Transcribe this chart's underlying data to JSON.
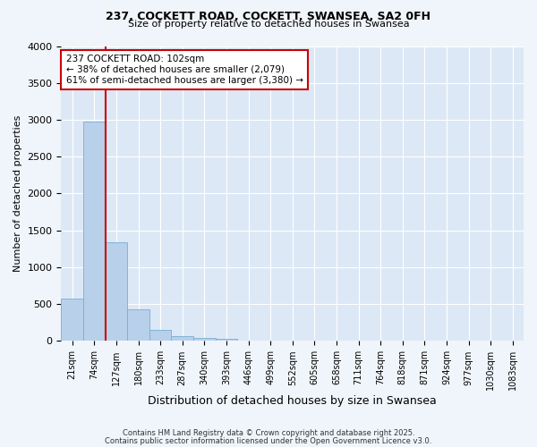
{
  "title_line1": "237, COCKETT ROAD, COCKETT, SWANSEA, SA2 0FH",
  "title_line2": "Size of property relative to detached houses in Swansea",
  "xlabel": "Distribution of detached houses by size in Swansea",
  "ylabel": "Number of detached properties",
  "footnote_line1": "Contains HM Land Registry data © Crown copyright and database right 2025.",
  "footnote_line2": "Contains public sector information licensed under the Open Government Licence v3.0.",
  "bar_labels": [
    "21sqm",
    "74sqm",
    "127sqm",
    "180sqm",
    "233sqm",
    "287sqm",
    "340sqm",
    "393sqm",
    "446sqm",
    "499sqm",
    "552sqm",
    "605sqm",
    "658sqm",
    "711sqm",
    "764sqm",
    "818sqm",
    "871sqm",
    "924sqm",
    "977sqm",
    "1030sqm",
    "1083sqm"
  ],
  "bar_values": [
    580,
    2970,
    1340,
    430,
    150,
    70,
    45,
    35,
    5,
    0,
    0,
    0,
    0,
    0,
    0,
    0,
    0,
    0,
    0,
    0,
    0
  ],
  "bar_color": "#b8d0ea",
  "bar_edge_color": "#7aadd4",
  "plot_bg_color": "#dce8f5",
  "fig_bg_color": "#f0f5fb",
  "grid_color": "#ffffff",
  "vline_color": "#cc0000",
  "annotation_text": "237 COCKETT ROAD: 102sqm\n← 38% of detached houses are smaller (2,079)\n61% of semi-detached houses are larger (3,380) →",
  "annotation_box_edge_color": "#cc0000",
  "ylim": [
    0,
    4000
  ],
  "yticks": [
    0,
    500,
    1000,
    1500,
    2000,
    2500,
    3000,
    3500,
    4000
  ]
}
